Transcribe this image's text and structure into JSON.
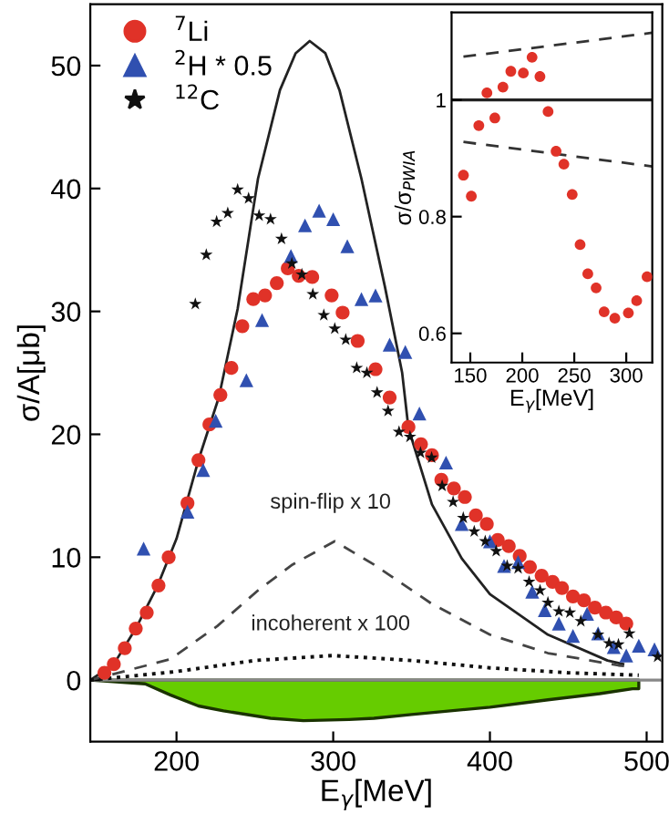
{
  "chart_data": [
    {
      "type": "scatter",
      "xlabel": "E$_{γ}$[MeV]",
      "ylabel": "σ/A[μb]",
      "xlim": [
        145,
        510
      ],
      "ylim": [
        -5,
        55
      ],
      "xticks": [
        200,
        300,
        400,
        500
      ],
      "yticks": [
        0,
        10,
        20,
        30,
        40,
        50
      ],
      "grid": false,
      "legend": "top left",
      "ref_lines": [
        {
          "axis": "y",
          "value": 0,
          "color": "#888888"
        }
      ],
      "annotations": [
        "spin-flip x 10",
        "incoherent x 100"
      ],
      "series": [
        {
          "type": "area",
          "color": "#66cc00",
          "x": [
            145,
            180,
            196,
            214,
            230,
            260,
            281,
            310,
            326,
            350,
            400,
            437,
            470,
            491,
            495
          ],
          "values": [
            0,
            -0.3,
            -1.2,
            -2.1,
            -2.5,
            -3.1,
            -3.3,
            -3.2,
            -3.1,
            -2.8,
            -2.2,
            -1.6,
            -1.1,
            -0.7,
            -0.7
          ]
        },
        {
          "type": "line",
          "line_style": "solid",
          "color": "#222222",
          "x": [
            145,
            160,
            174,
            188,
            200,
            214,
            227,
            239,
            252,
            266,
            276,
            285,
            295,
            304,
            318,
            333,
            344,
            348,
            363,
            382,
            400,
            437,
            475,
            485
          ],
          "values": [
            0,
            1.3,
            4.2,
            7.7,
            11.5,
            17.9,
            23,
            30.2,
            40.8,
            48,
            51,
            52,
            51,
            48,
            40.8,
            32,
            25,
            20.5,
            14.3,
            9.9,
            7,
            3.7,
            1.6,
            1.3
          ]
        },
        {
          "type": "line",
          "line_style": "dashed",
          "color": "#444444",
          "x": [
            145,
            196,
            226,
            252,
            274,
            301,
            326,
            363,
            400,
            437,
            482,
            489
          ],
          "values": [
            0,
            1.7,
            4.4,
            7.3,
            9.4,
            11.3,
            9.4,
            6.2,
            3.7,
            2.2,
            1.2,
            1.1
          ]
        },
        {
          "type": "line",
          "line_style": "dotted",
          "color": "#111111",
          "x": [
            145,
            200,
            250,
            300,
            350,
            400,
            450,
            495
          ],
          "values": [
            0,
            0.7,
            1.6,
            2.0,
            1.6,
            1.0,
            0.6,
            0.4
          ]
        },
        {
          "name": "$^{7}$Li",
          "marker": "circle",
          "color": "#e03228",
          "x": [
            154,
            160,
            167,
            174,
            181,
            188.5,
            195,
            207,
            214,
            221,
            228,
            235,
            242,
            249,
            256.5,
            264,
            271,
            278,
            286.6,
            299,
            306,
            315.6,
            327,
            336,
            348,
            356,
            363,
            369,
            377,
            384,
            391,
            398,
            405,
            412,
            419,
            425.5,
            433,
            440,
            446,
            453,
            460,
            467,
            474,
            480.6,
            487
          ],
          "values": [
            0.6,
            1.3,
            2.6,
            4.2,
            5.5,
            7.7,
            10.0,
            14.4,
            17.9,
            20.8,
            23.2,
            25.4,
            28.8,
            31.0,
            31.3,
            32.3,
            33.5,
            32.9,
            32.8,
            31.3,
            29.9,
            27.6,
            25.3,
            23.0,
            20.6,
            19.2,
            18.3,
            16.3,
            15.6,
            14.9,
            13.4,
            12.7,
            11.4,
            10.9,
            10.1,
            9.2,
            8.5,
            8.0,
            7.5,
            6.8,
            6.5,
            5.9,
            5.5,
            5.1,
            4.6
          ]
        },
        {
          "name": "$^{2}$H * 0.5",
          "marker": "triangle",
          "color": "#3050b0",
          "x": [
            179,
            207,
            217,
            225,
            244.6,
            254.6,
            273,
            282,
            291,
            300,
            309,
            318,
            327,
            336,
            346,
            355,
            372,
            382,
            400,
            409,
            418,
            427,
            435,
            444,
            453,
            462,
            469,
            479,
            487,
            495,
            505
          ],
          "values": [
            10.7,
            13.7,
            17.1,
            21.1,
            24.4,
            29.3,
            34.5,
            37.0,
            38.2,
            37.5,
            35.3,
            31.0,
            31.3,
            27.3,
            26.7,
            21.7,
            17.7,
            12.7,
            11.3,
            9.3,
            9.6,
            7.2,
            5.7,
            4.6,
            3.6,
            5.4,
            3.8,
            2.7,
            2.0,
            2.8,
            2.5
          ]
        },
        {
          "name": "$^{12}$C",
          "marker": "star",
          "color": "#111111",
          "x": [
            212,
            219,
            225.6,
            232.7,
            239,
            246,
            252.7,
            260,
            267,
            273.6,
            280,
            287,
            294,
            301,
            308,
            315,
            321.5,
            328,
            335,
            342,
            349,
            355.7,
            362.8,
            369.5,
            376.5,
            383,
            390,
            397,
            404,
            411,
            418,
            425,
            432,
            437,
            444,
            451,
            458,
            469,
            476,
            482,
            489,
            507
          ],
          "values": [
            30.6,
            34.6,
            37.3,
            38.0,
            39.9,
            39.2,
            37.8,
            37.5,
            35.9,
            33.9,
            33.0,
            31.4,
            29.7,
            28.6,
            27.7,
            25.4,
            25.0,
            23.4,
            21.9,
            20.2,
            19.8,
            18.5,
            18.1,
            15.8,
            14.5,
            13.2,
            12.1,
            11.3,
            10.5,
            9.3,
            9.1,
            8.0,
            7.3,
            6.3,
            5.6,
            5.5,
            4.8,
            3.7,
            3.0,
            2.9,
            3.8,
            1.9
          ]
        }
      ]
    },
    {
      "type": "scatter",
      "xlabel": "E$_{γ}$[MeV]",
      "ylabel": "σ/σ$_{PWIA}$",
      "xlim": [
        132,
        325
      ],
      "ylim": [
        0.55,
        1.15
      ],
      "xticks": [
        150,
        200,
        250,
        300
      ],
      "yticks": [
        0.6,
        0.8,
        1
      ],
      "grid": false,
      "ref_lines": [
        {
          "axis": "y",
          "value": 1,
          "color": "#222222"
        }
      ],
      "series": [
        {
          "type": "line",
          "line_style": "dashed",
          "color": "#333333",
          "x": [
            143.4,
            325
          ],
          "values": [
            1.074,
            1.115
          ]
        },
        {
          "type": "line",
          "line_style": "dashed",
          "color": "#333333",
          "x": [
            143.4,
            325
          ],
          "values": [
            0.928,
            0.886
          ]
        },
        {
          "marker": "circle",
          "color": "#e03228",
          "x": [
            143.4,
            151,
            158.2,
            166,
            173.6,
            181.4,
            189,
            201,
            209.4,
            217,
            224.8,
            232.5,
            240,
            248,
            255.6,
            263,
            271,
            278.7,
            289,
            302,
            310,
            320
          ],
          "values": [
            0.871,
            0.835,
            0.956,
            1.012,
            0.969,
            1.022,
            1.049,
            1.046,
            1.073,
            1.04,
            0.98,
            0.912,
            0.89,
            0.838,
            0.752,
            0.702,
            0.678,
            0.637,
            0.626,
            0.635,
            0.656,
            0.697
          ]
        }
      ]
    }
  ]
}
